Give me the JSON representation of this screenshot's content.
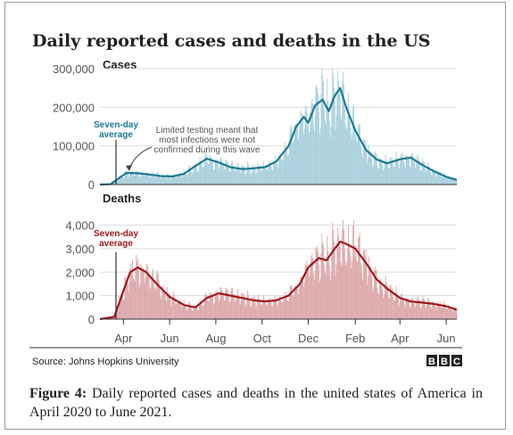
{
  "chart_data": [
    {
      "type": "bar+line",
      "panel_title": "Cases",
      "main_title": "Daily reported cases and deaths in the US",
      "ylim": [
        0,
        300000
      ],
      "yticks": [
        0,
        100000,
        200000,
        300000
      ],
      "ytick_labels": [
        "0",
        "100,000",
        "200,000",
        "300,000"
      ],
      "x_range": [
        "2020-03-01",
        "2021-06-15"
      ],
      "x_tick_labels": [
        "Apr",
        "Jun",
        "Aug",
        "Oct",
        "Dec",
        "Feb",
        "Apr",
        "Jun"
      ],
      "x_tick_dates": [
        "2020-04-01",
        "2020-06-01",
        "2020-08-01",
        "2020-10-01",
        "2020-12-01",
        "2021-02-01",
        "2021-04-01",
        "2021-06-01"
      ],
      "series": [
        {
          "name": "Seven-day average",
          "color": "#1a7a96",
          "points": [
            [
              "2020-03-01",
              0
            ],
            [
              "2020-03-15",
              1000
            ],
            [
              "2020-03-25",
              15000
            ],
            [
              "2020-04-05",
              30000
            ],
            [
              "2020-04-20",
              29000
            ],
            [
              "2020-05-05",
              26000
            ],
            [
              "2020-05-20",
              22000
            ],
            [
              "2020-06-05",
              21000
            ],
            [
              "2020-06-20",
              28000
            ],
            [
              "2020-07-05",
              48000
            ],
            [
              "2020-07-20",
              67000
            ],
            [
              "2020-08-05",
              57000
            ],
            [
              "2020-08-20",
              45000
            ],
            [
              "2020-09-05",
              40000
            ],
            [
              "2020-09-20",
              42000
            ],
            [
              "2020-10-05",
              45000
            ],
            [
              "2020-10-20",
              60000
            ],
            [
              "2020-11-05",
              100000
            ],
            [
              "2020-11-15",
              150000
            ],
            [
              "2020-11-25",
              175000
            ],
            [
              "2020-12-01",
              160000
            ],
            [
              "2020-12-10",
              205000
            ],
            [
              "2020-12-20",
              220000
            ],
            [
              "2020-12-28",
              190000
            ],
            [
              "2021-01-05",
              230000
            ],
            [
              "2021-01-12",
              250000
            ],
            [
              "2021-01-20",
              200000
            ],
            [
              "2021-02-01",
              140000
            ],
            [
              "2021-02-15",
              90000
            ],
            [
              "2021-03-01",
              65000
            ],
            [
              "2021-03-15",
              55000
            ],
            [
              "2021-04-01",
              65000
            ],
            [
              "2021-04-15",
              70000
            ],
            [
              "2021-05-01",
              50000
            ],
            [
              "2021-05-15",
              35000
            ],
            [
              "2021-06-01",
              20000
            ],
            [
              "2021-06-15",
              12000
            ]
          ]
        }
      ],
      "annotations": {
        "legend_label": "Seven-day average",
        "note": "Limited testing meant that most infections were not confirmed during this wave"
      }
    },
    {
      "type": "bar+line",
      "panel_title": "Deaths",
      "ylim": [
        0,
        4400
      ],
      "yticks": [
        0,
        1000,
        2000,
        3000,
        4000
      ],
      "ytick_labels": [
        "0",
        "1,000",
        "2,000",
        "3,000",
        "4,000"
      ],
      "x_range": [
        "2020-03-01",
        "2021-06-15"
      ],
      "series": [
        {
          "name": "Seven-day average",
          "color": "#a3161a",
          "points": [
            [
              "2020-03-01",
              0
            ],
            [
              "2020-03-20",
              100
            ],
            [
              "2020-04-01",
              1200
            ],
            [
              "2020-04-10",
              2000
            ],
            [
              "2020-04-20",
              2200
            ],
            [
              "2020-05-01",
              2000
            ],
            [
              "2020-05-15",
              1500
            ],
            [
              "2020-06-01",
              950
            ],
            [
              "2020-06-20",
              600
            ],
            [
              "2020-07-05",
              500
            ],
            [
              "2020-07-20",
              900
            ],
            [
              "2020-08-05",
              1100
            ],
            [
              "2020-08-20",
              1000
            ],
            [
              "2020-09-05",
              900
            ],
            [
              "2020-09-20",
              800
            ],
            [
              "2020-10-05",
              750
            ],
            [
              "2020-10-20",
              800
            ],
            [
              "2020-11-05",
              1000
            ],
            [
              "2020-11-20",
              1500
            ],
            [
              "2020-12-01",
              2200
            ],
            [
              "2020-12-15",
              2600
            ],
            [
              "2020-12-25",
              2500
            ],
            [
              "2021-01-05",
              3000
            ],
            [
              "2021-01-12",
              3300
            ],
            [
              "2021-01-20",
              3200
            ],
            [
              "2021-02-01",
              3000
            ],
            [
              "2021-02-15",
              2400
            ],
            [
              "2021-03-01",
              1700
            ],
            [
              "2021-03-15",
              1300
            ],
            [
              "2021-04-01",
              900
            ],
            [
              "2021-04-15",
              750
            ],
            [
              "2021-05-01",
              700
            ],
            [
              "2021-05-15",
              650
            ],
            [
              "2021-06-01",
              550
            ],
            [
              "2021-06-15",
              400
            ]
          ]
        }
      ],
      "annotations": {
        "legend_label": "Seven-day average"
      }
    }
  ],
  "source": "Source: Johns Hopkins University",
  "logo_letters": [
    "B",
    "B",
    "C"
  ],
  "caption": {
    "label": "Figure 4:",
    "text": " Daily reported cases and deaths in the united states of America in April 2020 to June 2021."
  },
  "colors": {
    "cases_bar": "#a9d0dc",
    "cases_line": "#1a7a96",
    "deaths_bar": "#dca8aa",
    "deaths_line": "#a3161a"
  }
}
